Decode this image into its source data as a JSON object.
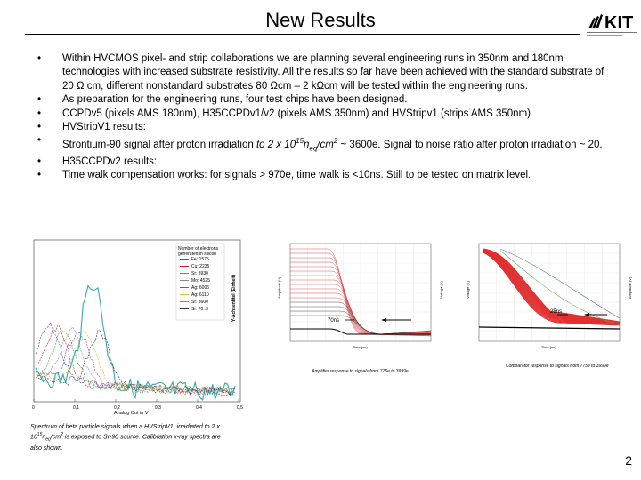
{
  "slide": {
    "title": "New Results",
    "logo_text": "KIT",
    "page_number": "2"
  },
  "bullets": [
    "Within HVCMOS pixel- and strip collaborations we are planning several engineering runs in 350nm and 180nm technologies with increased substrate resistivity. All the results so far have been achieved with the standard substrate of 20 Ω cm, different nonstandard substrates 80 Ωcm – 2 kΩcm will be tested within the engineering runs.",
    "As preparation for the engineering runs, four test chips have been designed.",
    "CCPDv5 (pixels AMS 180nm), H35CCPDv1/v2 (pixels AMS 350nm) and HVStripv1 (strips AMS 350nm)",
    "HVStripV1 results:",
    "Strontium-90 signal after proton irradiation to 2 x 10^15 neq/cm2 ~ 3600e. Signal to noise ratio after proton irradiation ~ 20.",
    "H35CCPDv2 results:",
    "Time walk compensation works: for signals > 970e, time walk is <10ns. Still to be tested on matrix level."
  ],
  "bullet5": {
    "part1": "Strontium-90 signal after proton irradiation ",
    "part2": "to 2 x 10",
    "sup1": "15",
    "part3": "n",
    "sub1": "eq",
    "part4": "/cm",
    "sup2": "2",
    "part5": " ~ 3600e. Signal to noise ratio after proton irradiation ~ 20."
  },
  "spectrum": {
    "caption_1": "Spectrum of beta particle signals when a HVStripV1, irradiated to 2 x",
    "caption_2a": "10",
    "caption_sup": "15",
    "caption_2b": "n",
    "caption_sub": "eq",
    "caption_2c": "/cm",
    "caption_sup2": "2",
    "caption_2d": " is exposed to Sr-90 source. Calibration x-ray spectra are",
    "caption_3": "also shown.",
    "xlabel": "Analog Out in V",
    "ylabel": "Y-Achsentitel (Einheit)",
    "legend_title_1": "Number of electrons",
    "legend_title_2": "generated in silicon",
    "legend_entries": [
      "Fe: 1575",
      "Cu: 2235",
      "Sr: 3930",
      "Mo: 4525",
      "Ag: 6005",
      "Ag: 6110",
      "Sr: 3600",
      "Sr: 70..3"
    ],
    "legend_colors": [
      "#3355cc",
      "#cc2222",
      "#33aa33",
      "#888888",
      "#aa33aa",
      "#cccc22",
      "#33aaaa",
      "#333333"
    ],
    "x_ticks": [
      "0",
      "0,1",
      "0,2",
      "0,3",
      "0,4",
      "0,5"
    ]
  },
  "amplifier": {
    "caption": "Amplifier response to signals from 775e to 3999e",
    "marker_label": "70ns",
    "xlabel": "Time (ns)",
    "ylabel_left": "Amplitude (V)",
    "ylabel_right": "Voltage (V)"
  },
  "comparator": {
    "caption": "Comparator response to signals from 775e to 3999e",
    "marker_label": "25ns",
    "xlabel": "Time (ns)",
    "ylabel_left": "Voltage (V)",
    "ylabel_right": "Amplitude (V)"
  }
}
